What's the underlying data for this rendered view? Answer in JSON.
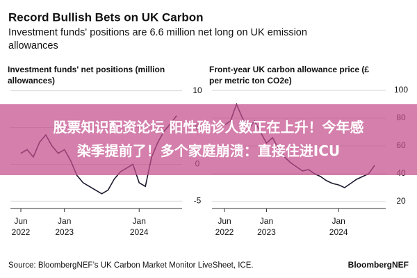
{
  "title": "Record Bullish Bets on UK Carbon",
  "subtitle": [
    "Investment funds' positions are 6.6 million net long on UK emission",
    "allowances"
  ],
  "source": "Source: BloombergNEF’s UK Carbon Market Monitor LiveSheet, ICE.",
  "brand": "BloombergNEF",
  "overlay": [
    "股票知识配资论坛 阳性确诊人数正在上升！今年感",
    "染季提前了！多个家庭崩溃：直接住进ICU"
  ],
  "chart_data": [
    {
      "type": "line",
      "title": [
        "Investment funds' net positions (million",
        "allowances)"
      ],
      "x": [
        "2022-06",
        "2022-07",
        "2022-08",
        "2022-09",
        "2022-10",
        "2022-11",
        "2022-12",
        "2023-01",
        "2023-02",
        "2023-03",
        "2023-04",
        "2023-05",
        "2023-06",
        "2023-07",
        "2023-08",
        "2023-09",
        "2023-10",
        "2023-11",
        "2023-12",
        "2024-01",
        "2024-02",
        "2024-03",
        "2024-04",
        "2024-05",
        "2024-06",
        "2024-07"
      ],
      "series": [
        {
          "color": "#1a1a2e",
          "values": [
            1.5,
            2,
            1,
            3,
            4,
            2.5,
            1.5,
            2,
            0.5,
            -1.5,
            -2.5,
            -3,
            -3.5,
            -4,
            -3.5,
            -2,
            -1,
            -0.5,
            0,
            -2.5,
            -3,
            1,
            3,
            4.5,
            5.5,
            6.6
          ]
        }
      ],
      "ylim": [
        -6,
        11
      ],
      "yticks": [
        -5,
        0,
        5,
        10
      ],
      "grid": true,
      "xticks": [
        {
          "value": "2022-06",
          "label": [
            "Jun",
            "2022"
          ]
        },
        {
          "value": "2023-01",
          "label": [
            "Jan",
            "2023"
          ]
        },
        {
          "value": "2024-01",
          "label": [
            "Jan",
            "2024"
          ]
        }
      ]
    },
    {
      "type": "line",
      "title": [
        "Front-year UK carbon allowance price (£",
        "per metric ton CO2e)"
      ],
      "x": [
        "2022-06",
        "2022-07",
        "2022-08",
        "2022-09",
        "2022-10",
        "2022-11",
        "2022-12",
        "2023-01",
        "2023-02",
        "2023-03",
        "2023-04",
        "2023-05",
        "2023-06",
        "2023-07",
        "2023-08",
        "2023-09",
        "2023-10",
        "2023-11",
        "2023-12",
        "2024-01",
        "2024-02",
        "2024-03",
        "2024-04",
        "2024-05",
        "2024-06",
        "2024-07"
      ],
      "series": [
        {
          "color": "#1a1a2e",
          "values": [
            75,
            78,
            90,
            80,
            72,
            78,
            70,
            62,
            66,
            58,
            52,
            48,
            45,
            42,
            43,
            40,
            38,
            35,
            33,
            32,
            30,
            33,
            36,
            38,
            40,
            46
          ]
        }
      ],
      "ylim": [
        15,
        105
      ],
      "yticks": [
        20,
        40,
        60,
        80,
        100
      ],
      "grid": true,
      "xticks": [
        {
          "value": "2022-06",
          "label": [
            "Jun",
            "2022"
          ]
        },
        {
          "value": "2023-01",
          "label": [
            "Jan",
            "2023"
          ]
        },
        {
          "value": "2024-01",
          "label": [
            "Jan",
            "2024"
          ]
        }
      ]
    }
  ]
}
